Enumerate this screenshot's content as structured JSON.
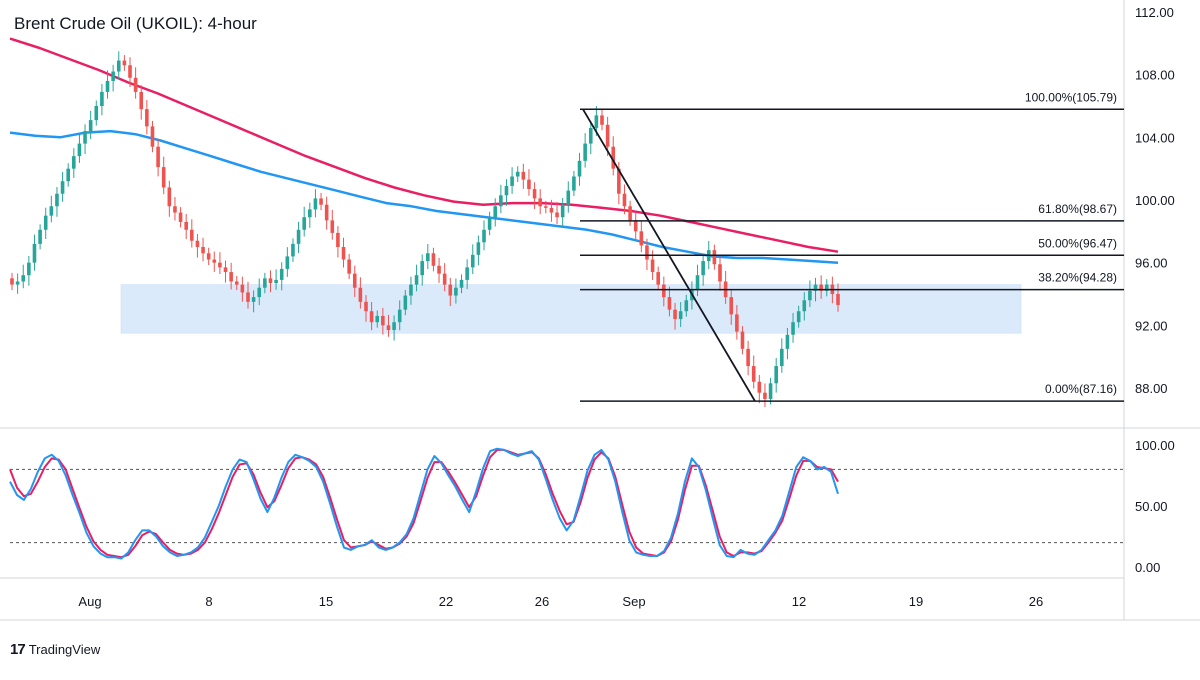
{
  "header": {
    "title": "Brent Crude Oil (UKOIL): 4-hour"
  },
  "brand": {
    "logo": "17",
    "name": "TradingView"
  },
  "chart_data": [
    {
      "type": "candlestick",
      "title": "Brent Crude Oil (UKOIL): 4-hour",
      "x_ticks": [
        "Aug",
        "8",
        "15",
        "22",
        "26",
        "Sep",
        "12",
        "19",
        "26"
      ],
      "y_ticks": [
        "112.00",
        "108.00",
        "104.00",
        "100.00",
        "96.00",
        "92.00",
        "88.00"
      ],
      "ylim": [
        86.0,
        112.0
      ],
      "grid": false,
      "colors": {
        "up": "#26a69a",
        "down": "#ef5350",
        "ema_fast": "#2196f3",
        "ema_slow": "#e91e63",
        "zone": "#dbeafb"
      },
      "support_zone": {
        "low": 91.5,
        "high": 94.6
      },
      "fibonacci": [
        {
          "label": "100.00%(105.79)",
          "value": 105.79
        },
        {
          "label": "61.80%(98.67)",
          "value": 98.67
        },
        {
          "label": "50.00%(96.47)",
          "value": 96.47
        },
        {
          "label": "38.20%(94.28)",
          "value": 94.28
        },
        {
          "label": "0.00%(87.16)",
          "value": 87.16
        }
      ],
      "trend_line": {
        "from": 105.79,
        "to": 87.16
      },
      "series": [
        {
          "name": "close",
          "values": [
            94.6,
            94.8,
            95.2,
            96.0,
            97.2,
            98.1,
            99.0,
            99.6,
            100.4,
            101.2,
            102.0,
            102.8,
            103.6,
            104.4,
            105.1,
            106.0,
            106.9,
            107.6,
            108.2,
            108.9,
            108.6,
            107.8,
            106.9,
            105.8,
            104.7,
            103.4,
            102.1,
            100.8,
            99.6,
            99.2,
            98.6,
            98.1,
            97.4,
            97.0,
            96.6,
            96.2,
            96.0,
            95.7,
            95.4,
            94.8,
            94.6,
            94.1,
            93.5,
            93.8,
            94.4,
            95.0,
            94.7,
            94.9,
            95.6,
            96.4,
            97.2,
            98.1,
            98.9,
            99.4,
            100.1,
            99.7,
            98.7,
            97.9,
            97.0,
            96.2,
            95.3,
            94.4,
            93.5,
            92.9,
            92.2,
            92.6,
            92.0,
            91.7,
            92.2,
            93.0,
            93.9,
            94.6,
            95.2,
            96.1,
            96.6,
            95.8,
            95.3,
            94.6,
            93.9,
            94.4,
            94.9,
            95.7,
            96.5,
            97.3,
            98.1,
            98.9,
            99.6,
            100.3,
            100.9,
            101.5,
            101.8,
            101.3,
            100.7,
            100.1,
            99.6,
            99.5,
            99.2,
            98.9,
            99.7,
            100.6,
            101.5,
            102.5,
            103.6,
            104.6,
            105.4,
            104.8,
            103.4,
            102.0,
            100.4,
            99.6,
            98.7,
            98.0,
            97.1,
            96.2,
            95.4,
            94.6,
            93.8,
            93.0,
            92.4,
            92.9,
            93.6,
            94.3,
            95.2,
            96.1,
            96.8,
            95.9,
            94.8,
            93.8,
            92.7,
            91.6,
            90.5,
            89.4,
            88.4,
            87.7,
            87.3,
            88.3,
            89.4,
            90.5,
            91.4,
            92.2,
            92.9,
            93.6,
            94.2,
            94.6,
            94.2,
            94.6,
            94.0,
            93.3
          ],
          "color": "#131722"
        },
        {
          "name": "ema_fast",
          "values": [
            104.3,
            104.1,
            104.0,
            104.3,
            104.4,
            104.2,
            103.8,
            103.3,
            102.8,
            102.3,
            101.8,
            101.4,
            101.0,
            100.6,
            100.2,
            99.8,
            99.6,
            99.3,
            99.1,
            98.9,
            98.7,
            98.5,
            98.3,
            98.1,
            97.8,
            97.4,
            97.0,
            96.7,
            96.4,
            96.3,
            96.3,
            96.2,
            96.1,
            96.0
          ],
          "color": "#2196f3"
        },
        {
          "name": "ema_slow",
          "values": [
            110.3,
            109.7,
            109.0,
            108.3,
            107.5,
            106.8,
            106.0,
            105.2,
            104.4,
            103.6,
            102.8,
            102.1,
            101.4,
            100.8,
            100.3,
            99.9,
            99.7,
            99.8,
            99.8,
            99.7,
            99.5,
            99.3,
            99.0,
            98.6,
            98.2,
            97.8,
            97.4,
            97.0,
            96.7
          ],
          "color": "#e91e63"
        }
      ]
    },
    {
      "type": "line",
      "title": "",
      "y_ticks": [
        "100.00",
        "50.00",
        "0.00"
      ],
      "ylim": [
        0,
        100
      ],
      "levels": [
        80,
        20
      ],
      "series": [
        {
          "name": "k",
          "values": [
            70,
            59,
            55,
            64,
            78,
            89,
            92,
            87,
            75,
            59,
            44,
            28,
            17,
            11,
            8,
            8,
            7,
            12,
            22,
            30,
            30,
            25,
            17,
            12,
            9,
            10,
            12,
            16,
            24,
            37,
            50,
            66,
            80,
            88,
            86,
            72,
            56,
            45,
            57,
            73,
            86,
            92,
            90,
            87,
            82,
            70,
            52,
            33,
            16,
            14,
            17,
            18,
            22,
            16,
            14,
            16,
            20,
            27,
            40,
            60,
            80,
            91,
            85,
            75,
            66,
            55,
            45,
            62,
            81,
            95,
            97,
            96,
            93,
            91,
            93,
            95,
            88,
            72,
            55,
            40,
            30,
            38,
            58,
            79,
            92,
            96,
            88,
            70,
            45,
            22,
            12,
            10,
            9,
            9,
            13,
            24,
            44,
            70,
            89,
            82,
            63,
            40,
            18,
            9,
            8,
            14,
            11,
            10,
            14,
            22,
            30,
            42,
            62,
            82,
            90,
            87,
            80,
            82,
            78,
            60
          ],
          "color": "#2196f3"
        },
        {
          "name": "d",
          "values": [
            80,
            65,
            58,
            60,
            70,
            82,
            89,
            88,
            80,
            64,
            48,
            33,
            21,
            14,
            10,
            9,
            8,
            10,
            17,
            26,
            29,
            27,
            20,
            14,
            11,
            10,
            11,
            14,
            20,
            31,
            44,
            59,
            74,
            84,
            85,
            76,
            61,
            49,
            54,
            67,
            81,
            89,
            90,
            88,
            84,
            74,
            57,
            39,
            22,
            16,
            17,
            18,
            21,
            18,
            15,
            16,
            19,
            25,
            36,
            54,
            73,
            86,
            86,
            78,
            69,
            59,
            49,
            58,
            75,
            90,
            96,
            96,
            94,
            92,
            93,
            94,
            89,
            76,
            60,
            46,
            35,
            37,
            53,
            73,
            88,
            94,
            89,
            74,
            51,
            29,
            16,
            11,
            10,
            9,
            12,
            21,
            39,
            63,
            83,
            83,
            67,
            46,
            25,
            12,
            9,
            12,
            12,
            11,
            13,
            20,
            28,
            38,
            56,
            75,
            87,
            87,
            82,
            81,
            80,
            70
          ],
          "color": "#e91e63"
        }
      ]
    }
  ]
}
